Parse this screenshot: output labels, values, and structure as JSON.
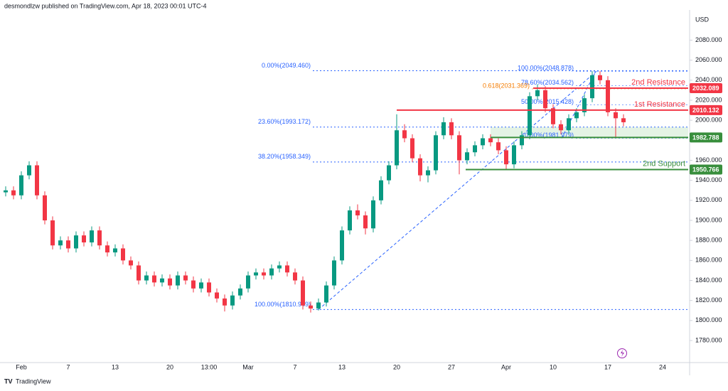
{
  "header": "desmondlzw published on TradingView.com, Apr 18, 2023 00:01 UTC-4",
  "footer": "TradingView",
  "chart_data": {
    "type": "candlestick",
    "y_axis_label": "USD",
    "up_color": "#089981",
    "down_color": "#f23645",
    "categories": [
      null,
      null,
      "Feb",
      null,
      null,
      null,
      null,
      null,
      "7",
      null,
      null,
      null,
      null,
      null,
      "13",
      null,
      null,
      null,
      null,
      null,
      null,
      "20",
      null,
      null,
      null,
      null,
      "13:00",
      null,
      null,
      null,
      null,
      "Mar",
      null,
      null,
      null,
      null,
      null,
      "7",
      null,
      null,
      null,
      null,
      null,
      "13",
      null,
      null,
      null,
      null,
      null,
      null,
      "20",
      null,
      null,
      null,
      null,
      null,
      null,
      "27",
      null,
      null,
      null,
      null,
      null,
      null,
      "Apr",
      null,
      null,
      null,
      null,
      null,
      "10",
      null,
      null,
      null,
      null,
      null,
      null,
      "17",
      null,
      null,
      null,
      null,
      null,
      null,
      "24",
      null
    ],
    "open": [
      1928,
      1930,
      1925,
      1945,
      1955,
      1925,
      1900,
      1875,
      1880,
      1872,
      1885,
      1878,
      1890,
      1875,
      1868,
      1872,
      1860,
      1855,
      1840,
      1845,
      1838,
      1842,
      1835,
      1845,
      1840,
      1832,
      1838,
      1828,
      1822,
      1815,
      1825,
      1832,
      1845,
      1848,
      1845,
      1852,
      1855,
      1848,
      1840,
      1815,
      1812,
      1818,
      1835,
      1860,
      1890,
      1910,
      1905,
      1892,
      1920,
      1940,
      1955,
      1990,
      1982,
      1962,
      1945,
      1950,
      1985,
      1998,
      1985,
      1960,
      1968,
      1975,
      1982,
      1978,
      1970,
      1956,
      1975,
      1985,
      2024,
      2030,
      2012,
      1996,
      1990,
      2002,
      2008,
      2022,
      2045,
      2040,
      2008,
      2002,
      null,
      null,
      null,
      null,
      null,
      null
    ],
    "high": [
      1934,
      1934,
      1949,
      1959,
      1959,
      1929,
      1904,
      1884,
      1884,
      1889,
      1889,
      1894,
      1894,
      1879,
      1876,
      1876,
      1864,
      1859,
      1849,
      1849,
      1846,
      1846,
      1849,
      1849,
      1844,
      1842,
      1842,
      1832,
      1826,
      1829,
      1836,
      1849,
      1852,
      1852,
      1856,
      1859,
      1859,
      1852,
      1844,
      1819,
      1822,
      1839,
      1864,
      1894,
      1914,
      1916,
      1909,
      1924,
      1944,
      1959,
      2006,
      1996,
      1986,
      1966,
      1954,
      1989,
      2003,
      2002,
      1989,
      1972,
      1979,
      1986,
      1986,
      1982,
      1974,
      1979,
      1989,
      2028,
      2036,
      2034,
      2016,
      2000,
      2006,
      2012,
      2026,
      2049,
      2049,
      2044,
      2012,
      2006,
      null,
      null,
      null,
      null,
      null,
      null
    ],
    "low": [
      1924,
      1921,
      1921,
      1941,
      1921,
      1896,
      1871,
      1871,
      1868,
      1868,
      1874,
      1874,
      1871,
      1864,
      1864,
      1856,
      1851,
      1836,
      1836,
      1834,
      1834,
      1831,
      1831,
      1836,
      1828,
      1828,
      1824,
      1818,
      1809,
      1811,
      1821,
      1828,
      1841,
      1841,
      1841,
      1848,
      1844,
      1836,
      1811,
      1808,
      1810,
      1814,
      1831,
      1856,
      1886,
      1901,
      1886,
      1888,
      1916,
      1936,
      1951,
      1978,
      1958,
      1939,
      1938,
      1946,
      1981,
      1981,
      1946,
      1956,
      1964,
      1971,
      1974,
      1966,
      1951,
      1952,
      1971,
      1981,
      2020,
      2008,
      1992,
      1986,
      1986,
      1998,
      2004,
      2018,
      2036,
      2004,
      1983,
      1994,
      null,
      null,
      null,
      null,
      null,
      null
    ],
    "close": [
      1930,
      1925,
      1945,
      1955,
      1925,
      1900,
      1875,
      1880,
      1872,
      1885,
      1878,
      1890,
      1875,
      1868,
      1872,
      1860,
      1855,
      1840,
      1845,
      1838,
      1842,
      1835,
      1845,
      1840,
      1832,
      1838,
      1828,
      1822,
      1815,
      1825,
      1832,
      1845,
      1848,
      1845,
      1852,
      1855,
      1848,
      1840,
      1815,
      1812,
      1818,
      1835,
      1860,
      1890,
      1910,
      1905,
      1892,
      1920,
      1940,
      1955,
      1990,
      1982,
      1962,
      1945,
      1950,
      1985,
      1998,
      1985,
      1960,
      1968,
      1975,
      1982,
      1978,
      1970,
      1956,
      1975,
      1985,
      2024,
      2030,
      2012,
      1996,
      1990,
      2002,
      2008,
      2022,
      2045,
      2040,
      2008,
      2002,
      1998,
      null,
      null,
      null,
      null,
      null,
      null
    ],
    "ylim": [
      1758,
      2113
    ],
    "yticks": [
      {
        "value": 1780,
        "label": "1780.000"
      },
      {
        "value": 1800,
        "label": "1800.000"
      },
      {
        "value": 1820,
        "label": "1820.000"
      },
      {
        "value": 1840,
        "label": "1840.000"
      },
      {
        "value": 1860,
        "label": "1860.000"
      },
      {
        "value": 1880,
        "label": "1880.000"
      },
      {
        "value": 1900,
        "label": "1900.000"
      },
      {
        "value": 1920,
        "label": "1920.000"
      },
      {
        "value": 1940,
        "label": "1940.000"
      },
      {
        "value": 1960,
        "label": "1960.000"
      },
      {
        "value": 1980,
        "label": "1980.000"
      },
      {
        "value": 2000,
        "label": "2000.000"
      },
      {
        "value": 2020,
        "label": "2020.000"
      },
      {
        "value": 2040,
        "label": "2040.000"
      },
      {
        "value": 2060,
        "label": "2060.000"
      },
      {
        "value": 2080,
        "label": "2080.000"
      }
    ],
    "levels": [
      {
        "name": "2nd Resistance",
        "value": 2032.089,
        "color": "#f23645"
      },
      {
        "name": "1st Resistance",
        "value": 2010.132,
        "color": "#f23645"
      },
      {
        "value": 1982.788,
        "color": "#388e3c"
      },
      {
        "name": "2nd Support",
        "value": 1950.766,
        "color": "#388e3c"
      }
    ],
    "fib_a": [
      {
        "label": "0.00%(2049.460)",
        "value": 2049.46,
        "color": "#2962ff"
      },
      {
        "label": "23.60%(1993.172)",
        "value": 1993.172,
        "color": "#2962ff"
      },
      {
        "label": "38.20%(1958.349)",
        "value": 1958.349,
        "color": "#2962ff"
      },
      {
        "label": "100.00%(1810.949)",
        "value": 1810.949,
        "color": "#2962ff"
      }
    ],
    "fib_b": [
      {
        "label": "100.00%(2048.878)",
        "value": 2048.878,
        "color": "#2962ff"
      },
      {
        "label": "78.60%(2034.562)",
        "value": 2034.562,
        "color": "#2962ff"
      },
      {
        "label": "0.618(2031.369)",
        "value": 2031.369,
        "color": "#f57c00"
      },
      {
        "label": "50.00%(2015.428)",
        "value": 2015.428,
        "color": "#2962ff"
      },
      {
        "label": "0.00%(1981.979)",
        "value": 1981.979,
        "color": "#2962ff"
      }
    ]
  }
}
